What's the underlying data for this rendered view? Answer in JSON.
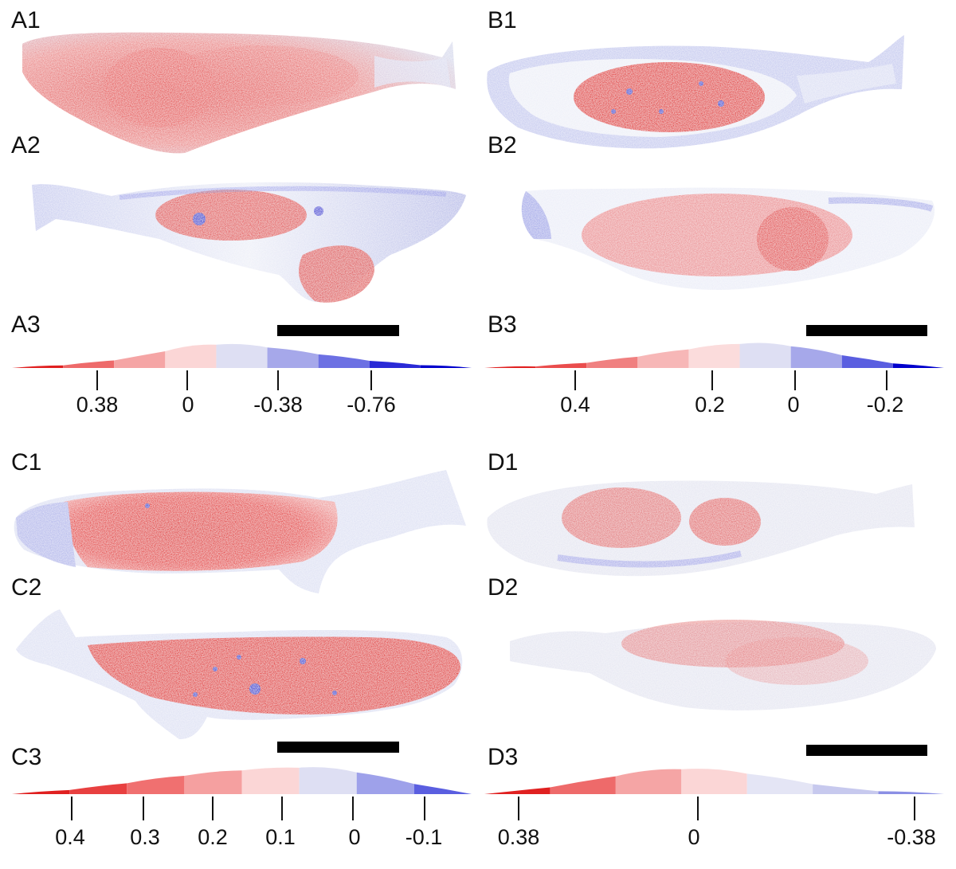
{
  "panels": [
    {
      "id": "A",
      "labels": [
        "A1",
        "A2",
        "A3"
      ],
      "histogram": {
        "bands": [
          "#e02020",
          "#ee6a6a",
          "#f5a5a5",
          "#fbd6d6",
          "#dedff3",
          "#a6a8ea",
          "#6c70e3",
          "#2a2ad6",
          "#0000cc"
        ],
        "ticks": [
          "0.38",
          "0",
          "-0.38",
          "-0.76"
        ]
      }
    },
    {
      "id": "B",
      "labels": [
        "B1",
        "B2",
        "B3"
      ],
      "histogram": {
        "bands": [
          "#e02020",
          "#ea4d4d",
          "#f08080",
          "#f7b7b7",
          "#fbdcdc",
          "#dedff3",
          "#a6a8ea",
          "#5a5ee0",
          "#0000cc"
        ],
        "ticks": [
          "0.4",
          "0.2",
          "0",
          "-0.2"
        ]
      }
    },
    {
      "id": "C",
      "labels": [
        "C1",
        "C2",
        "C3"
      ],
      "histogram": {
        "bands": [
          "#e02020",
          "#e84040",
          "#f07070",
          "#f5a0a0",
          "#fbd6d6",
          "#dedff3",
          "#9ea1ea",
          "#5a5ee0"
        ],
        "ticks": [
          "0.4",
          "0.3",
          "0.2",
          "0.1",
          "0",
          "-0.1"
        ]
      }
    },
    {
      "id": "D",
      "labels": [
        "D1",
        "D2",
        "D3"
      ],
      "histogram": {
        "bands": [
          "#e02020",
          "#ee6a6a",
          "#f5a5a5",
          "#fbd6d6",
          "#e4e5f5",
          "#c7c9ee",
          "#8b8fe5"
        ],
        "ticks": [
          "0.38",
          "0",
          "-0.38"
        ]
      }
    }
  ],
  "colors": {
    "red": "#e03232",
    "blue": "#3a3ad8",
    "pale": "#e8e8ee",
    "scalebar": "#000000"
  }
}
